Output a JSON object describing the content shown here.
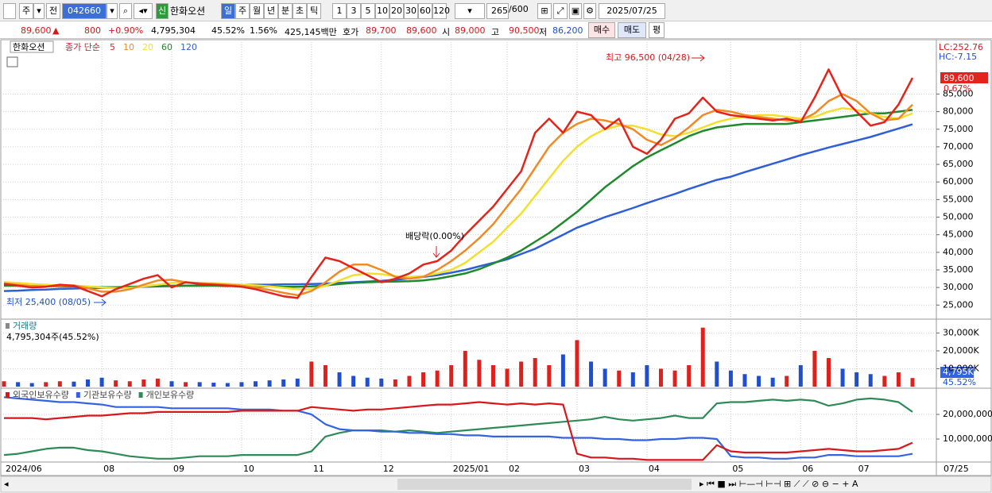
{
  "toolbar": {
    "period": "주",
    "prev": "전",
    "code": "042660",
    "credit": "신",
    "name": "한화오션",
    "intervals": [
      "일",
      "주",
      "월",
      "년",
      "분",
      "초",
      "틱"
    ],
    "minutes": [
      "1",
      "3",
      "5",
      "10",
      "20",
      "30",
      "60",
      "120"
    ],
    "count": "265",
    "max_count": "/600",
    "date": "2025/07/25"
  },
  "info_bar": {
    "price": "89,600",
    "arrow": "▲",
    "change": "800",
    "change_pct": "+0.90%",
    "volume": "4,795,304",
    "volume_ratio": "45.52%",
    "turnover": "1.56%",
    "trade_value": "425,145백만",
    "quote_label": "호가",
    "ask": "89,700",
    "bid": "89,600",
    "open_label": "시",
    "open": "89,000",
    "high_label": "고",
    "high": "90,500",
    "low_label": "저",
    "low": "86,200",
    "buy": "매수",
    "sell": "매도",
    "avg": "평"
  },
  "chart_data": [
    {
      "type": "line",
      "title": "한화오션",
      "legend_label": "종가 단순",
      "series": [
        {
          "name": "5",
          "color": "#e5231b",
          "values": [
            31000,
            30500,
            30000,
            30200,
            30800,
            30500,
            29000,
            27500,
            29500,
            31000,
            32500,
            33500,
            30000,
            31500,
            31000,
            30800,
            30500,
            30200,
            29500,
            28500,
            27500,
            27000,
            33000,
            38500,
            37500,
            35500,
            33500,
            31500,
            32500,
            34000,
            36500,
            37500,
            40500,
            45000,
            49000,
            53000,
            58000,
            63000,
            74000,
            78000,
            74000,
            80000,
            79000,
            75000,
            78000,
            70000,
            68000,
            72000,
            78000,
            79500,
            84000,
            80000,
            79000,
            78500,
            78000,
            77500,
            78000,
            77000,
            84000,
            92000,
            84000,
            80000,
            76000,
            77000,
            82000,
            89600
          ]
        },
        {
          "name": "10",
          "color": "#f08a24",
          "values": [
            31200,
            30800,
            30400,
            30300,
            30500,
            30600,
            29800,
            28800,
            28800,
            29500,
            30800,
            32000,
            32200,
            31500,
            31200,
            31000,
            30800,
            30500,
            30000,
            29300,
            28500,
            27800,
            29000,
            31500,
            34500,
            36500,
            36500,
            35000,
            33000,
            32500,
            33000,
            35000,
            37500,
            40500,
            44000,
            48000,
            53000,
            58000,
            64000,
            70000,
            74000,
            76500,
            78000,
            77500,
            76500,
            75000,
            72000,
            70500,
            72500,
            75500,
            79000,
            80500,
            80000,
            79000,
            78500,
            78000,
            77500,
            77500,
            79500,
            83000,
            85000,
            83000,
            79500,
            77500,
            78000,
            82000
          ]
        },
        {
          "name": "20",
          "color": "#f2df2e",
          "values": [
            31500,
            31300,
            31000,
            30800,
            30600,
            30500,
            30300,
            30000,
            29800,
            29900,
            30300,
            30800,
            31300,
            31400,
            31300,
            31200,
            31000,
            30800,
            30600,
            30300,
            29900,
            29500,
            29500,
            30500,
            32000,
            33500,
            34000,
            33800,
            33200,
            33000,
            33200,
            34000,
            35000,
            37000,
            40000,
            43000,
            47000,
            51000,
            56000,
            61000,
            66000,
            70000,
            73000,
            75000,
            76000,
            76000,
            75000,
            73500,
            73000,
            74000,
            75500,
            77000,
            78000,
            78500,
            79000,
            79000,
            78500,
            78000,
            78500,
            80000,
            81000,
            80500,
            79500,
            78500,
            78000,
            79500
          ]
        },
        {
          "name": "60",
          "color": "#1e8a2c",
          "values": [
            30500,
            30500,
            30400,
            30400,
            30300,
            30300,
            30200,
            30100,
            30100,
            30200,
            30300,
            30400,
            30500,
            30500,
            30500,
            30500,
            30400,
            30400,
            30300,
            30300,
            30200,
            30200,
            30300,
            30600,
            31000,
            31300,
            31500,
            31600,
            31700,
            31800,
            32000,
            32500,
            33200,
            34000,
            35200,
            36800,
            38500,
            40500,
            43000,
            45500,
            48500,
            51500,
            55000,
            58500,
            61500,
            64500,
            67000,
            69000,
            71000,
            73000,
            74500,
            75500,
            76000,
            76500,
            76500,
            76500,
            76500,
            77000,
            77500,
            78000,
            78500,
            79000,
            79500,
            79500,
            80000,
            80500
          ]
        },
        {
          "name": "120",
          "color": "#2f5fd6",
          "values": [
            29000,
            29100,
            29300,
            29400,
            29600,
            29700,
            29800,
            29900,
            30000,
            30100,
            30200,
            30300,
            30400,
            30500,
            30500,
            30600,
            30600,
            30700,
            30800,
            30800,
            30900,
            30900,
            31000,
            31100,
            31300,
            31500,
            31700,
            31900,
            32200,
            32600,
            33000,
            33500,
            34200,
            35000,
            36000,
            37000,
            38000,
            39500,
            41000,
            43000,
            45000,
            47000,
            48500,
            50000,
            51300,
            52600,
            54000,
            55300,
            56600,
            58000,
            59300,
            60600,
            61500,
            62800,
            64000,
            65200,
            66400,
            67600,
            68700,
            69800,
            70800,
            71800,
            72800,
            74000,
            75200,
            76400
          ]
        }
      ],
      "ylim": [
        21000,
        100000
      ],
      "yticks": [
        {
          "value": 25000,
          "label": "25,000"
        },
        {
          "value": 30000,
          "label": "30,000"
        },
        {
          "value": 35000,
          "label": "35,000"
        },
        {
          "value": 40000,
          "label": "40,000"
        },
        {
          "value": 45000,
          "label": "45,000"
        },
        {
          "value": 50000,
          "label": "50,000"
        },
        {
          "value": 55000,
          "label": "55,000"
        },
        {
          "value": 60000,
          "label": "60,000"
        },
        {
          "value": 65000,
          "label": "65,000"
        },
        {
          "value": 70000,
          "label": "70,000"
        },
        {
          "value": 75000,
          "label": "75,000"
        },
        {
          "value": 80000,
          "label": "80,000"
        },
        {
          "value": 85000,
          "label": "85,000"
        }
      ],
      "grid": true,
      "annotations": {
        "high": "최고 96,500 (04/28)",
        "low": "최저 25,400 (08/05)",
        "dividend": "배당락(0.00%)",
        "lc": "LC:252.76",
        "hc": "HC:-7.15",
        "current": "89,600",
        "current_pct": "0.67%"
      }
    },
    {
      "type": "bar",
      "title": "거래량",
      "subtitle": "4,795,304주(45.52%)",
      "up_color": "#e0201c",
      "down_color": "#1f4fcf",
      "values": [
        3000,
        2500,
        2000,
        2500,
        3000,
        2800,
        4000,
        5000,
        3500,
        3000,
        4000,
        4500,
        3000,
        2500,
        2500,
        2200,
        2000,
        2500,
        3000,
        3500,
        4000,
        4500,
        14000,
        12000,
        8000,
        6000,
        5000,
        4500,
        4000,
        6000,
        8000,
        9000,
        12000,
        20000,
        15000,
        12000,
        10000,
        14000,
        16000,
        12000,
        18000,
        26000,
        14000,
        10000,
        9000,
        8000,
        12000,
        10000,
        9000,
        12000,
        33000,
        14000,
        9000,
        7000,
        6000,
        5000,
        6000,
        12000,
        20000,
        16000,
        10000,
        8000,
        7000,
        6000,
        8000,
        4795
      ],
      "ylim": [
        0,
        37300
      ],
      "yticks": [
        {
          "value": 10000,
          "label": "10,000K"
        },
        {
          "value": 20000,
          "label": "20,000K"
        },
        {
          "value": 30000,
          "label": "30,000K"
        }
      ],
      "current": "4,795K",
      "current_pct": "45.52%"
    },
    {
      "type": "line",
      "categories": [
        "2024/06",
        null,
        null,
        null,
        null,
        null,
        null,
        "08",
        null,
        null,
        null,
        null,
        "09",
        null,
        null,
        null,
        null,
        "10",
        null,
        null,
        null,
        null,
        "11",
        null,
        null,
        null,
        null,
        "12",
        null,
        null,
        null,
        null,
        "2025/01",
        null,
        null,
        null,
        "02",
        null,
        null,
        null,
        null,
        "03",
        null,
        null,
        null,
        null,
        "04",
        null,
        null,
        null,
        null,
        null,
        "05",
        null,
        null,
        null,
        null,
        "06",
        null,
        null,
        null,
        "07",
        null,
        null,
        null,
        null
      ],
      "last_date": "07/25",
      "series": [
        {
          "name": "외국인보유수량",
          "color": "#d8171b",
          "values": [
            18500000,
            18500000,
            18500000,
            18000000,
            18500000,
            19000000,
            19500000,
            19500000,
            20000000,
            20500000,
            20500000,
            21000000,
            21000000,
            21000000,
            21000000,
            21000000,
            21000000,
            21500000,
            21500000,
            21500000,
            21500000,
            21500000,
            23000000,
            22500000,
            22000000,
            21500000,
            22000000,
            22000000,
            22500000,
            23000000,
            23500000,
            24000000,
            24000000,
            24500000,
            25000000,
            24500000,
            24000000,
            24500000,
            24000000,
            24500000,
            24000000,
            4000000,
            2500000,
            2500000,
            2000000,
            2000000,
            1500000,
            1500000,
            1500000,
            1500000,
            1500000,
            7500000,
            5000000,
            4500000,
            4500000,
            4500000,
            4500000,
            5000000,
            5500000,
            6000000,
            5500000,
            5000000,
            5000000,
            5500000,
            6000000,
            8500000
          ]
        },
        {
          "name": "기관보유수량",
          "color": "#3563e0",
          "values": [
            27000000,
            26500000,
            26000000,
            25500000,
            25000000,
            25000000,
            24500000,
            24000000,
            23000000,
            23000000,
            23000000,
            23000000,
            22500000,
            22500000,
            22500000,
            22500000,
            22500000,
            22000000,
            22000000,
            22000000,
            21500000,
            21500000,
            20000000,
            16000000,
            14000000,
            13500000,
            13500000,
            13000000,
            13000000,
            12500000,
            12500000,
            12000000,
            12000000,
            11500000,
            11500000,
            11000000,
            11000000,
            11000000,
            11000000,
            11000000,
            10500000,
            10500000,
            10500000,
            10000000,
            10000000,
            9500000,
            9500000,
            10000000,
            10000000,
            10500000,
            10500000,
            10000000,
            3000000,
            2500000,
            2500000,
            2000000,
            2000000,
            2500000,
            2500000,
            3500000,
            3500000,
            3000000,
            3000000,
            3000000,
            3000000,
            4000000
          ]
        },
        {
          "name": "개인보유수량",
          "color": "#2e8b57",
          "values": [
            3500000,
            4000000,
            5000000,
            6000000,
            6500000,
            6500000,
            5500000,
            5000000,
            4000000,
            3000000,
            2500000,
            2000000,
            2000000,
            2500000,
            3000000,
            3000000,
            3000000,
            3500000,
            3500000,
            3500000,
            3500000,
            3500000,
            5000000,
            11000000,
            12500000,
            13500000,
            13500000,
            13500000,
            13000000,
            13500000,
            13000000,
            12500000,
            13000000,
            13500000,
            14000000,
            14500000,
            15000000,
            15500000,
            16000000,
            16500000,
            17000000,
            17500000,
            18000000,
            19000000,
            18000000,
            17500000,
            18000000,
            18500000,
            19500000,
            18500000,
            18500000,
            24500000,
            25000000,
            25000000,
            25500000,
            26000000,
            25500000,
            26000000,
            25500000,
            23500000,
            24500000,
            26000000,
            26500000,
            26000000,
            25000000,
            21000000
          ]
        }
      ],
      "ylim": [
        0,
        30000000
      ],
      "yticks": [
        {
          "value": 10000000,
          "label": "10,000,000"
        },
        {
          "value": 20000000,
          "label": "20,000,000"
        }
      ]
    }
  ]
}
